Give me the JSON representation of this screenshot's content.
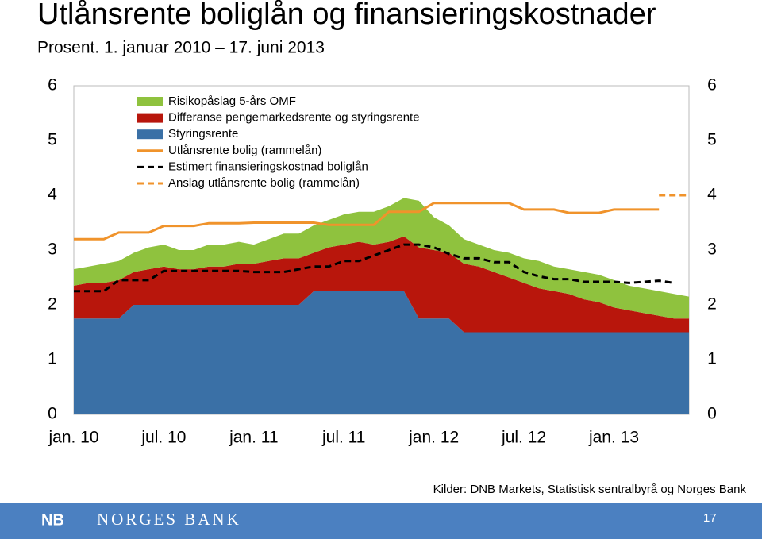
{
  "chart_data": {
    "type": "area",
    "title": "Utlånsrente boliglån og finansieringskostnader",
    "subtitle": "Prosent. 1. januar 2010 – 17. juni 2013",
    "source": "Kilder: DNB Markets, Statistisk sentralbyrå og Norges Bank",
    "stacked": true,
    "x": [
      "2010-01",
      "2010-02",
      "2010-03",
      "2010-04",
      "2010-05",
      "2010-06",
      "2010-07",
      "2010-08",
      "2010-09",
      "2010-10",
      "2010-11",
      "2010-12",
      "2011-01",
      "2011-02",
      "2011-03",
      "2011-04",
      "2011-05",
      "2011-06",
      "2011-07",
      "2011-08",
      "2011-09",
      "2011-10",
      "2011-11",
      "2011-12",
      "2012-01",
      "2012-02",
      "2012-03",
      "2012-04",
      "2012-05",
      "2012-06",
      "2012-07",
      "2012-08",
      "2012-09",
      "2012-10",
      "2012-11",
      "2012-12",
      "2013-01",
      "2013-02",
      "2013-03",
      "2013-04",
      "2013-05",
      "2013-06"
    ],
    "xlim": [
      "2010-01",
      "2013-06"
    ],
    "xticks": [
      {
        "value": "2010-01",
        "label": "jan. 10"
      },
      {
        "value": "2010-07",
        "label": "jul. 10"
      },
      {
        "value": "2011-01",
        "label": "jan. 11"
      },
      {
        "value": "2011-07",
        "label": "jul. 11"
      },
      {
        "value": "2012-01",
        "label": "jan. 12"
      },
      {
        "value": "2012-07",
        "label": "jul. 12"
      },
      {
        "value": "2013-01",
        "label": "jan. 13"
      }
    ],
    "ylim": [
      0,
      6
    ],
    "yticks": [
      0,
      1,
      2,
      3,
      4,
      5,
      6
    ],
    "y2lim": [
      0,
      6
    ],
    "y2ticks": [
      0,
      1,
      2,
      3,
      4,
      5,
      6
    ],
    "grid": false,
    "legend": "top-left",
    "series": [
      {
        "name": "Risikopåslag 5-års OMF",
        "style": "area",
        "color": "#8fc23e",
        "values": [
          0.3,
          0.3,
          0.35,
          0.35,
          0.35,
          0.4,
          0.4,
          0.35,
          0.35,
          0.4,
          0.4,
          0.4,
          0.35,
          0.4,
          0.45,
          0.45,
          0.5,
          0.5,
          0.55,
          0.55,
          0.6,
          0.65,
          0.7,
          0.85,
          0.6,
          0.5,
          0.45,
          0.4,
          0.4,
          0.45,
          0.45,
          0.5,
          0.45,
          0.45,
          0.5,
          0.5,
          0.5,
          0.45,
          0.45,
          0.45,
          0.45,
          0.4
        ]
      },
      {
        "name": "Differanse pengemarkedsrente og styringsrente",
        "style": "area",
        "color": "#b8160c",
        "values": [
          0.6,
          0.65,
          0.65,
          0.7,
          0.6,
          0.65,
          0.7,
          0.65,
          0.65,
          0.7,
          0.7,
          0.75,
          0.75,
          0.8,
          0.85,
          0.85,
          0.7,
          0.8,
          0.85,
          0.9,
          0.85,
          0.9,
          1.0,
          1.3,
          1.25,
          1.2,
          1.25,
          1.2,
          1.1,
          1.0,
          0.9,
          0.8,
          0.75,
          0.7,
          0.6,
          0.55,
          0.45,
          0.4,
          0.35,
          0.3,
          0.25,
          0.25
        ]
      },
      {
        "name": "Styringsrente",
        "style": "area",
        "color": "#3a70a6",
        "values": [
          1.75,
          1.75,
          1.75,
          1.75,
          2.0,
          2.0,
          2.0,
          2.0,
          2.0,
          2.0,
          2.0,
          2.0,
          2.0,
          2.0,
          2.0,
          2.0,
          2.25,
          2.25,
          2.25,
          2.25,
          2.25,
          2.25,
          2.25,
          1.75,
          1.75,
          1.75,
          1.5,
          1.5,
          1.5,
          1.5,
          1.5,
          1.5,
          1.5,
          1.5,
          1.5,
          1.5,
          1.5,
          1.5,
          1.5,
          1.5,
          1.5,
          1.5
        ]
      },
      {
        "name": "Utlånsrente bolig (rammelån)",
        "style": "line",
        "color": "#f0932b",
        "dash": false,
        "values": [
          3.2,
          3.2,
          3.2,
          3.32,
          3.32,
          3.32,
          3.44,
          3.44,
          3.44,
          3.49,
          3.49,
          3.49,
          3.5,
          3.5,
          3.5,
          3.5,
          3.5,
          3.46,
          3.46,
          3.46,
          3.46,
          3.7,
          3.7,
          3.7,
          3.86,
          3.86,
          3.86,
          3.86,
          3.86,
          3.86,
          3.74,
          3.74,
          3.74,
          3.68,
          3.68,
          3.68,
          3.74,
          3.74,
          3.74,
          3.74,
          null,
          null
        ]
      },
      {
        "name": "Estimert finansieringskostnad boliglån",
        "style": "line",
        "color": "#000000",
        "dash": true,
        "values": [
          2.25,
          2.25,
          2.25,
          2.45,
          2.45,
          2.45,
          2.62,
          2.62,
          2.62,
          2.62,
          2.62,
          2.62,
          2.6,
          2.6,
          2.6,
          2.65,
          2.7,
          2.7,
          2.8,
          2.8,
          2.9,
          3.0,
          3.1,
          3.1,
          3.05,
          2.93,
          2.85,
          2.85,
          2.78,
          2.78,
          2.6,
          2.52,
          2.47,
          2.47,
          2.42,
          2.42,
          2.42,
          2.4,
          2.42,
          2.44,
          2.4,
          null
        ]
      },
      {
        "name": "Anslag utlånsrente bolig (rammelån)",
        "style": "line",
        "color": "#f0932b",
        "dash": true,
        "values": [
          null,
          null,
          null,
          null,
          null,
          null,
          null,
          null,
          null,
          null,
          null,
          null,
          null,
          null,
          null,
          null,
          null,
          null,
          null,
          null,
          null,
          null,
          null,
          null,
          null,
          null,
          null,
          null,
          null,
          null,
          null,
          null,
          null,
          null,
          null,
          null,
          null,
          null,
          null,
          4.0,
          4.0,
          4.0
        ]
      }
    ]
  },
  "footer": {
    "logo": "NB",
    "bank": "NORGES BANK",
    "page": "17"
  }
}
